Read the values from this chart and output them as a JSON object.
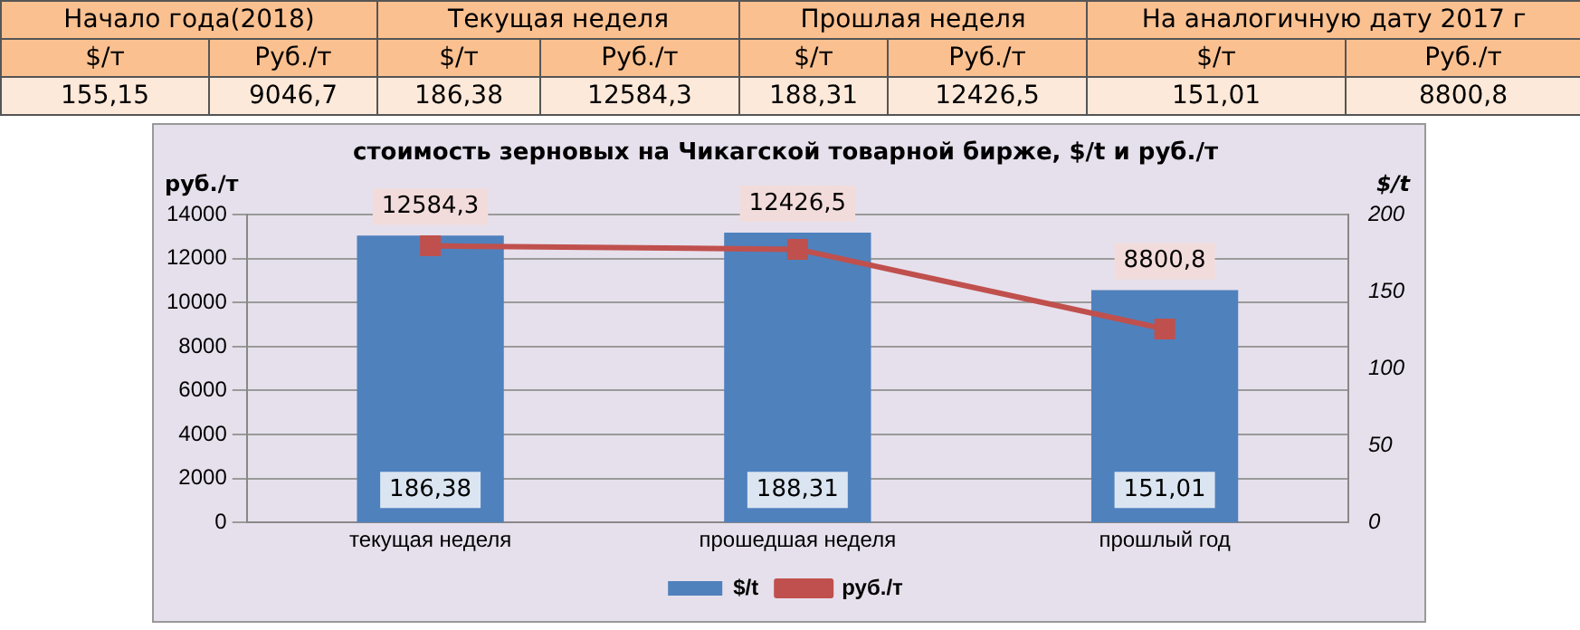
{
  "chart_data": {
    "type": "bar",
    "title": "стоимость зерновых на Чикагской товарной бирже, $/t и руб./т",
    "categories": [
      "текущая неделя",
      "прошедшая неделя",
      "прошлый год"
    ],
    "series": [
      {
        "name": "$/t",
        "axis": "y2",
        "color": "#4f81bd",
        "values": [
          186.38,
          188.31,
          151.01
        ],
        "value_labels": [
          "186,38",
          "188,31",
          "151,01"
        ]
      },
      {
        "name": "руб./т",
        "type": "line",
        "axis": "y",
        "color": "#c0504d",
        "values": [
          12584.3,
          12426.5,
          8800.8
        ],
        "value_labels": [
          "12584,3",
          "12426,5",
          "8800,8"
        ]
      }
    ],
    "ylabel": "руб./т",
    "y2label": "$/t",
    "ylim": [
      0,
      14000
    ],
    "yticks": [
      0,
      2000,
      4000,
      6000,
      8000,
      10000,
      12000,
      14000
    ],
    "y2lim": [
      0,
      200
    ],
    "y2ticks": [
      0,
      50,
      100,
      150,
      200
    ],
    "grid": "y",
    "legend": "bottom",
    "marker": "square",
    "line_style": "solid",
    "annotations": [
      "Начало года(2018)",
      "Текущая неделя",
      "Прошлая неделя",
      "На аналогичную дату 2017 г",
      "$/т",
      "Руб./т",
      "$/т",
      "Руб./т",
      "$/т",
      "Руб./т",
      "$/т",
      "Руб./т",
      "155,15",
      "9046,7",
      "186,38",
      "12584,3",
      "188,31",
      "12426,5",
      "151,01",
      "8800,8"
    ]
  }
}
